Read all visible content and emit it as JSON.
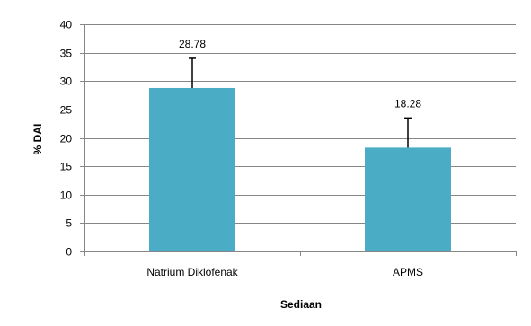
{
  "chart_data": {
    "type": "bar",
    "categories": [
      "Natrium Diklofenak",
      "APMS"
    ],
    "values": [
      28.78,
      18.28
    ],
    "value_labels": [
      "28.78",
      "18.28"
    ],
    "error_upper": [
      34.0,
      23.5
    ],
    "xlabel": "Sediaan",
    "ylabel": "% DAI",
    "ylim": [
      0,
      40
    ],
    "yticks": [
      0,
      5,
      10,
      15,
      20,
      25,
      30,
      35,
      40
    ],
    "grid": true,
    "legend": false,
    "bar_color": "#4bacc6",
    "grid_color": "#868686",
    "error_bar_color": "#000000"
  }
}
